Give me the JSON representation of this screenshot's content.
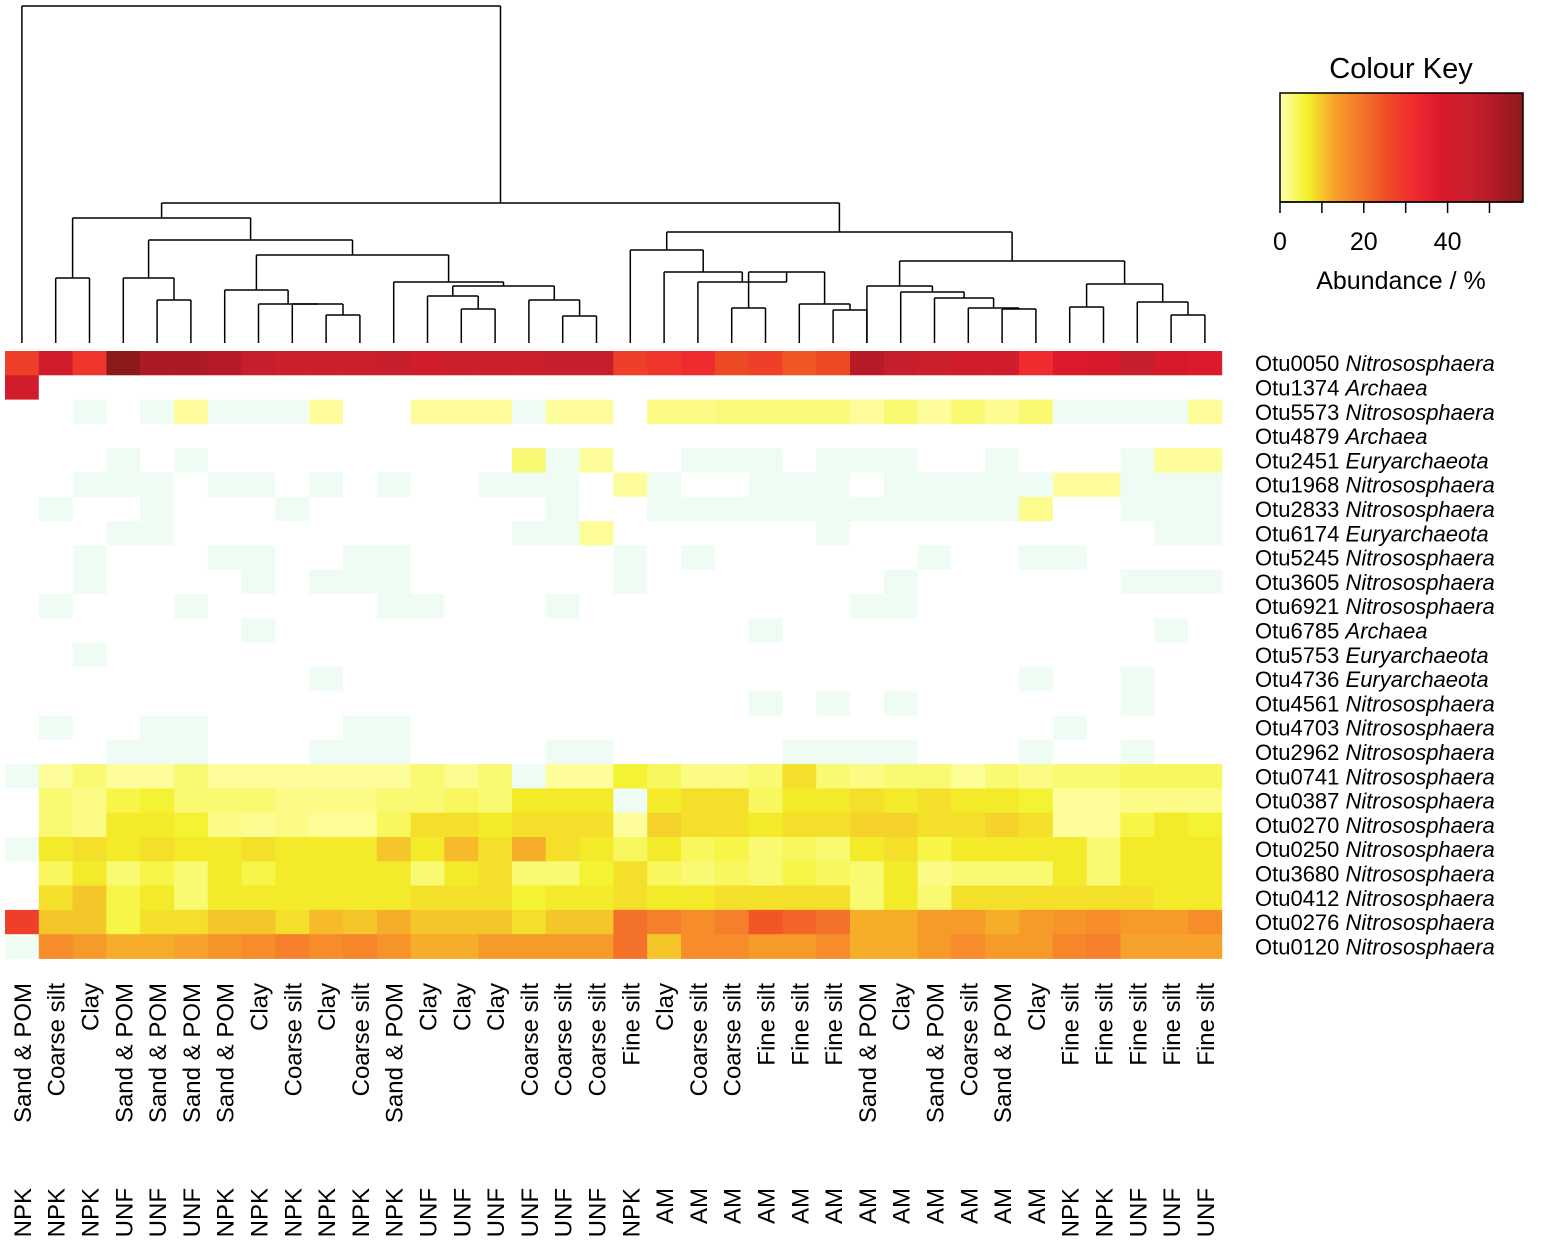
{
  "chart_data": {
    "type": "heatmap",
    "colour_key": {
      "title": "Colour Key",
      "label": "Abundance / %",
      "ticks": [
        0,
        20,
        40
      ],
      "range": [
        0,
        58
      ],
      "colors": [
        "#ffffb0",
        "#f3f22a",
        "#f7a32a",
        "#f4762a",
        "#ee4a25",
        "#f02a30",
        "#d9192a",
        "#c9202c",
        "#b01a25",
        "#8c1a1a"
      ]
    },
    "columns": [
      {
        "fraction": "Sand & POM",
        "treatment": "NPK"
      },
      {
        "fraction": "Coarse silt",
        "treatment": "NPK"
      },
      {
        "fraction": "Clay",
        "treatment": "NPK"
      },
      {
        "fraction": "Sand & POM",
        "treatment": "UNF"
      },
      {
        "fraction": "Sand & POM",
        "treatment": "UNF"
      },
      {
        "fraction": "Sand & POM",
        "treatment": "UNF"
      },
      {
        "fraction": "Sand & POM",
        "treatment": "NPK"
      },
      {
        "fraction": "Clay",
        "treatment": "NPK"
      },
      {
        "fraction": "Coarse silt",
        "treatment": "NPK"
      },
      {
        "fraction": "Clay",
        "treatment": "NPK"
      },
      {
        "fraction": "Coarse silt",
        "treatment": "NPK"
      },
      {
        "fraction": "Sand & POM",
        "treatment": "NPK"
      },
      {
        "fraction": "Clay",
        "treatment": "UNF"
      },
      {
        "fraction": "Clay",
        "treatment": "UNF"
      },
      {
        "fraction": "Clay",
        "treatment": "UNF"
      },
      {
        "fraction": "Coarse silt",
        "treatment": "UNF"
      },
      {
        "fraction": "Coarse silt",
        "treatment": "UNF"
      },
      {
        "fraction": "Coarse silt",
        "treatment": "UNF"
      },
      {
        "fraction": "Fine silt",
        "treatment": "NPK"
      },
      {
        "fraction": "Clay",
        "treatment": "AM"
      },
      {
        "fraction": "Coarse silt",
        "treatment": "AM"
      },
      {
        "fraction": "Coarse silt",
        "treatment": "AM"
      },
      {
        "fraction": "Fine silt",
        "treatment": "AM"
      },
      {
        "fraction": "Fine silt",
        "treatment": "AM"
      },
      {
        "fraction": "Fine silt",
        "treatment": "AM"
      },
      {
        "fraction": "Sand & POM",
        "treatment": "AM"
      },
      {
        "fraction": "Clay",
        "treatment": "AM"
      },
      {
        "fraction": "Sand & POM",
        "treatment": "AM"
      },
      {
        "fraction": "Coarse silt",
        "treatment": "AM"
      },
      {
        "fraction": "Sand & POM",
        "treatment": "AM"
      },
      {
        "fraction": "Clay",
        "treatment": "AM"
      },
      {
        "fraction": "Fine silt",
        "treatment": "NPK"
      },
      {
        "fraction": "Fine silt",
        "treatment": "NPK"
      },
      {
        "fraction": "Fine silt",
        "treatment": "UNF"
      },
      {
        "fraction": "Fine silt",
        "treatment": "UNF"
      },
      {
        "fraction": "Fine silt",
        "treatment": "UNF"
      }
    ],
    "rows": [
      {
        "otu": "Otu0050",
        "taxon": "Nitrososphaera"
      },
      {
        "otu": "Otu1374",
        "taxon": "Archaea"
      },
      {
        "otu": "Otu5573",
        "taxon": "Nitrososphaera"
      },
      {
        "otu": "Otu4879",
        "taxon": "Archaea"
      },
      {
        "otu": "Otu2451",
        "taxon": "Euryarchaeota"
      },
      {
        "otu": "Otu1968",
        "taxon": "Nitrososphaera"
      },
      {
        "otu": "Otu2833",
        "taxon": "Nitrososphaera"
      },
      {
        "otu": "Otu6174",
        "taxon": "Euryarchaeota"
      },
      {
        "otu": "Otu5245",
        "taxon": "Nitrososphaera"
      },
      {
        "otu": "Otu3605",
        "taxon": "Nitrososphaera"
      },
      {
        "otu": "Otu6921",
        "taxon": "Nitrososphaera"
      },
      {
        "otu": "Otu6785",
        "taxon": "Archaea"
      },
      {
        "otu": "Otu5753",
        "taxon": "Euryarchaeota"
      },
      {
        "otu": "Otu4736",
        "taxon": "Euryarchaeota"
      },
      {
        "otu": "Otu4561",
        "taxon": "Nitrososphaera"
      },
      {
        "otu": "Otu4703",
        "taxon": "Nitrososphaera"
      },
      {
        "otu": "Otu2962",
        "taxon": "Nitrososphaera"
      },
      {
        "otu": "Otu0741",
        "taxon": "Nitrososphaera"
      },
      {
        "otu": "Otu0387",
        "taxon": "Nitrososphaera"
      },
      {
        "otu": "Otu0270",
        "taxon": "Nitrososphaera"
      },
      {
        "otu": "Otu0250",
        "taxon": "Nitrososphaera"
      },
      {
        "otu": "Otu3680",
        "taxon": "Nitrososphaera"
      },
      {
        "otu": "Otu0412",
        "taxon": "Nitrososphaera"
      },
      {
        "otu": "Otu0276",
        "taxon": "Nitrososphaera"
      },
      {
        "otu": "Otu0120",
        "taxon": "Nitrososphaera"
      }
    ],
    "values": [
      [
        28,
        42,
        30,
        58,
        52,
        52,
        50,
        46,
        44,
        44,
        44,
        46,
        42,
        44,
        44,
        44,
        46,
        46,
        28,
        30,
        32,
        26,
        28,
        24,
        26,
        50,
        46,
        44,
        42,
        42,
        32,
        38,
        40,
        46,
        40,
        38
      ],
      [
        42,
        0,
        0,
        0,
        0,
        0,
        0,
        0,
        0,
        0,
        0,
        0,
        0,
        0,
        0,
        0,
        0,
        0,
        0,
        0,
        0,
        0,
        0,
        0,
        0,
        0,
        0,
        0,
        0,
        0,
        0,
        0,
        0,
        0,
        0,
        0
      ],
      [
        0,
        0,
        0.3,
        0,
        0.3,
        0.9,
        0.3,
        0.3,
        0.3,
        0.9,
        0,
        0,
        0.9,
        0.9,
        0.9,
        0.3,
        0.9,
        0.9,
        0,
        2,
        2,
        2.5,
        2.5,
        2.5,
        2.5,
        1,
        3,
        1,
        3,
        1.5,
        3,
        0.3,
        0.3,
        0.3,
        0.3,
        1
      ],
      [
        0,
        0,
        0,
        0,
        0,
        0,
        0,
        0,
        0,
        0,
        0,
        0,
        0,
        0,
        0,
        0,
        0,
        0,
        0,
        0,
        0,
        0,
        0,
        0,
        0,
        0,
        0,
        0,
        0,
        0,
        0,
        0,
        0,
        0,
        0,
        0
      ],
      [
        0,
        0,
        0,
        0.3,
        0,
        0.3,
        0,
        0,
        0,
        0,
        0,
        0,
        0,
        0,
        0,
        2.8,
        0.3,
        1,
        0,
        0,
        0.3,
        0.3,
        0.3,
        0,
        0.3,
        0.3,
        0.3,
        0,
        0,
        0.3,
        0,
        0,
        0,
        0.3,
        1,
        1
      ],
      [
        0,
        0,
        0.3,
        0.3,
        0.3,
        0,
        0.3,
        0.3,
        0,
        0.3,
        0,
        0.3,
        0,
        0,
        0.3,
        0.3,
        0.3,
        0,
        1,
        0.3,
        0,
        0,
        0.3,
        0.3,
        0.3,
        0,
        0.3,
        0.3,
        0.3,
        0.3,
        0.3,
        0.9,
        0.9,
        0.3,
        0.3,
        0.3
      ],
      [
        0,
        0.3,
        0,
        0,
        0.3,
        0,
        0,
        0,
        0.3,
        0,
        0,
        0,
        0,
        0,
        0,
        0,
        0.3,
        0,
        0,
        0.3,
        0.3,
        0.3,
        0.3,
        0.3,
        0.3,
        0.3,
        0.3,
        0.3,
        0.3,
        0.3,
        1.8,
        0,
        0,
        0.3,
        0.3,
        0.3
      ],
      [
        0,
        0,
        0,
        0.3,
        0.3,
        0,
        0,
        0,
        0,
        0,
        0,
        0,
        0,
        0,
        0,
        0.3,
        0.3,
        1.2,
        0,
        0,
        0,
        0,
        0,
        0,
        0.3,
        0,
        0,
        0,
        0,
        0,
        0,
        0,
        0,
        0,
        0.3,
        0.3
      ],
      [
        0,
        0,
        0.3,
        0,
        0,
        0,
        0.3,
        0.3,
        0,
        0,
        0.3,
        0.3,
        0,
        0,
        0,
        0,
        0,
        0,
        0.3,
        0,
        0.3,
        0,
        0,
        0,
        0,
        0,
        0,
        0.3,
        0,
        0,
        0.3,
        0.3,
        0,
        0,
        0,
        0
      ],
      [
        0,
        0,
        0.3,
        0,
        0,
        0,
        0,
        0.3,
        0,
        0.3,
        0.3,
        0.3,
        0,
        0,
        0,
        0,
        0,
        0,
        0.3,
        0,
        0,
        0,
        0,
        0,
        0,
        0,
        0.3,
        0,
        0,
        0,
        0,
        0,
        0,
        0.3,
        0.3,
        0.3
      ],
      [
        0,
        0.3,
        0,
        0,
        0,
        0.3,
        0,
        0,
        0,
        0,
        0,
        0.3,
        0.3,
        0,
        0,
        0,
        0.3,
        0,
        0,
        0,
        0,
        0,
        0,
        0,
        0,
        0.3,
        0.3,
        0,
        0,
        0,
        0,
        0,
        0,
        0,
        0,
        0
      ],
      [
        0,
        0,
        0,
        0,
        0,
        0,
        0,
        0.3,
        0,
        0,
        0,
        0,
        0,
        0,
        0,
        0,
        0,
        0,
        0,
        0,
        0,
        0,
        0.3,
        0,
        0,
        0,
        0,
        0,
        0,
        0,
        0,
        0,
        0,
        0,
        0.3,
        0
      ],
      [
        0,
        0,
        0.3,
        0,
        0,
        0,
        0,
        0,
        0,
        0,
        0,
        0,
        0,
        0,
        0,
        0,
        0,
        0,
        0,
        0,
        0,
        0,
        0,
        0,
        0,
        0,
        0,
        0,
        0,
        0,
        0,
        0,
        0,
        0,
        0,
        0
      ],
      [
        0,
        0,
        0,
        0,
        0,
        0,
        0,
        0,
        0,
        0.3,
        0,
        0,
        0,
        0,
        0,
        0,
        0,
        0,
        0,
        0,
        0,
        0,
        0,
        0,
        0,
        0,
        0,
        0,
        0,
        0,
        0.3,
        0,
        0,
        0.3,
        0,
        0
      ],
      [
        0,
        0,
        0,
        0,
        0,
        0,
        0,
        0,
        0,
        0,
        0,
        0,
        0,
        0,
        0,
        0,
        0,
        0,
        0,
        0,
        0,
        0,
        0.3,
        0,
        0.3,
        0,
        0.3,
        0,
        0,
        0,
        0,
        0,
        0,
        0.3,
        0,
        0
      ],
      [
        0,
        0.3,
        0,
        0,
        0.3,
        0.3,
        0,
        0,
        0,
        0,
        0.3,
        0.3,
        0,
        0,
        0,
        0,
        0,
        0,
        0,
        0,
        0,
        0,
        0,
        0,
        0,
        0,
        0,
        0,
        0,
        0,
        0,
        0.3,
        0,
        0,
        0,
        0
      ],
      [
        0,
        0,
        0,
        0.3,
        0.3,
        0.3,
        0,
        0,
        0,
        0.3,
        0.3,
        0.3,
        0,
        0,
        0,
        0,
        0.3,
        0.3,
        0,
        0,
        0,
        0,
        0,
        0.3,
        0.3,
        0.3,
        0.3,
        0,
        0,
        0,
        0.3,
        0,
        0,
        0.3,
        0,
        0
      ],
      [
        0.3,
        1,
        3,
        1,
        1,
        3,
        1,
        1,
        1,
        1,
        1,
        1,
        3,
        1.5,
        3,
        0.3,
        1,
        1,
        6,
        4,
        2,
        2,
        3,
        8,
        3,
        2,
        3,
        3,
        1.2,
        3,
        2,
        3,
        3,
        4,
        4,
        4
      ],
      [
        0,
        3,
        2,
        5,
        6,
        3,
        3,
        3,
        2,
        2,
        2,
        3,
        3,
        4,
        3,
        7,
        7,
        7,
        0.3,
        7,
        8,
        8,
        4,
        7,
        7,
        8,
        7,
        8,
        7,
        7,
        6,
        1,
        1,
        2,
        2,
        2
      ],
      [
        0,
        3,
        2,
        7,
        7,
        6,
        2,
        1.5,
        2,
        1.2,
        1.2,
        4,
        8,
        8,
        7,
        8,
        8,
        8,
        1,
        9,
        8,
        8,
        7,
        8,
        8,
        9,
        9,
        8,
        8,
        9,
        8,
        1,
        1,
        5,
        7,
        6
      ],
      [
        0.3,
        7,
        8,
        7,
        8,
        7,
        7,
        8,
        7,
        7,
        7,
        10,
        7,
        11,
        8,
        12,
        8,
        7,
        4,
        7,
        4,
        5,
        3,
        4,
        3,
        7,
        8,
        5,
        7,
        7,
        7,
        7,
        3,
        7,
        7,
        7
      ],
      [
        0,
        4,
        7,
        3,
        5,
        3,
        7,
        5,
        7,
        7,
        7,
        7,
        3,
        7,
        8,
        3,
        3,
        6,
        8,
        4,
        3,
        4,
        3,
        5,
        4,
        3,
        7,
        2,
        3,
        3,
        3,
        7,
        3,
        7,
        7,
        7
      ],
      [
        0,
        8,
        10,
        5,
        7,
        3,
        7,
        7,
        7,
        7,
        7,
        7,
        8,
        8,
        8,
        6,
        7,
        7,
        8,
        7,
        7,
        8,
        8,
        8,
        8,
        3,
        7,
        3,
        8,
        8,
        8,
        8,
        8,
        8,
        7,
        7
      ],
      [
        28,
        10,
        10,
        5,
        8,
        8,
        10,
        10,
        8,
        11,
        10,
        12,
        10,
        10,
        10,
        8,
        10,
        10,
        20,
        18,
        16,
        18,
        24,
        22,
        20,
        12,
        12,
        14,
        14,
        12,
        14,
        15,
        16,
        14,
        14,
        16
      ],
      [
        0.3,
        16,
        14,
        12,
        12,
        13,
        15,
        16,
        18,
        16,
        17,
        15,
        12,
        12,
        14,
        14,
        14,
        14,
        20,
        10,
        16,
        16,
        14,
        14,
        16,
        12,
        12,
        14,
        16,
        14,
        14,
        17,
        18,
        13,
        13,
        13
      ]
    ]
  }
}
